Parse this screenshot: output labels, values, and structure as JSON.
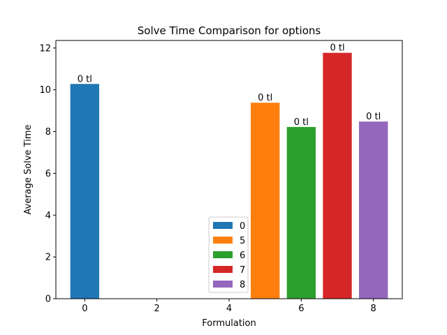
{
  "chart_data": {
    "type": "bar",
    "title": "Solve Time Comparison for options",
    "xlabel": "Formulation",
    "ylabel": "Average Solve Time",
    "xlim": [
      -0.8,
      8.8
    ],
    "ylim": [
      0,
      12.36
    ],
    "xticks": [
      0,
      2,
      4,
      6,
      8
    ],
    "yticks": [
      0,
      2,
      4,
      6,
      8,
      10,
      12
    ],
    "bar_width": 0.8,
    "grid": false,
    "legend_position": "lower center",
    "series": [
      {
        "name": "0",
        "x": 0,
        "value": 10.28,
        "label": "0 tl",
        "color": "#1f77b4"
      },
      {
        "name": "5",
        "x": 5,
        "value": 9.38,
        "label": "0 tl",
        "color": "#ff7f0e"
      },
      {
        "name": "6",
        "x": 6,
        "value": 8.22,
        "label": "0 tl",
        "color": "#2ca02c"
      },
      {
        "name": "7",
        "x": 7,
        "value": 11.77,
        "label": "0 tl",
        "color": "#d62728"
      },
      {
        "name": "8",
        "x": 8,
        "value": 8.48,
        "label": "0 tl",
        "color": "#9467bd"
      }
    ]
  }
}
